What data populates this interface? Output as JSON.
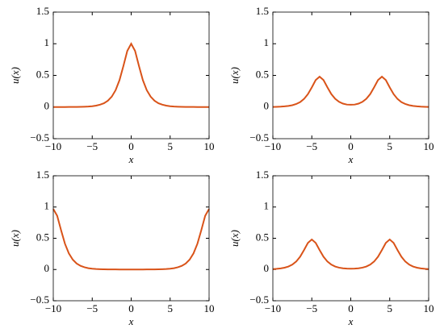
{
  "chart_data": [
    {
      "type": "line",
      "xlabel": "x",
      "ylabel": "u(x)",
      "x": [
        -10,
        -9.5,
        -9,
        -8.5,
        -8,
        -7.5,
        -7,
        -6.5,
        -6,
        -5.5,
        -5,
        -4.5,
        -4,
        -3.5,
        -3,
        -2.5,
        -2,
        -1.5,
        -1,
        -0.5,
        0,
        0.5,
        1,
        1.5,
        2,
        2.5,
        3,
        3.5,
        4,
        4.5,
        5,
        5.5,
        6,
        6.5,
        7,
        7.5,
        8,
        8.5,
        9,
        9.5,
        10
      ],
      "series": [
        {
          "color": "#d95319",
          "values": [
            0,
            0,
            0,
            0,
            0.001,
            0.001,
            0.002,
            0.003,
            0.005,
            0.008,
            0.013,
            0.022,
            0.037,
            0.06,
            0.099,
            0.163,
            0.266,
            0.425,
            0.648,
            0.887,
            1,
            0.887,
            0.648,
            0.425,
            0.266,
            0.163,
            0.099,
            0.06,
            0.037,
            0.022,
            0.013,
            0.008,
            0.005,
            0.003,
            0.002,
            0.001,
            0.001,
            0,
            0,
            0,
            0
          ]
        }
      ],
      "xlim": [
        -10,
        10
      ],
      "ylim": [
        -0.5,
        1.5
      ],
      "xticks": [
        {
          "value": -10,
          "label": "−10"
        },
        {
          "value": -5,
          "label": "−5"
        },
        0,
        5,
        10
      ],
      "yticks": [
        {
          "value": -0.5,
          "label": "−0.5"
        },
        0,
        0.5,
        1,
        1.5
      ]
    },
    {
      "type": "line",
      "xlabel": "x",
      "ylabel": "u(x)",
      "x": [
        -10,
        -9.5,
        -9,
        -8.5,
        -8,
        -7.5,
        -7,
        -6.5,
        -6,
        -5.5,
        -5,
        -4.5,
        -4,
        -3.5,
        -3,
        -2.5,
        -2,
        -1.5,
        -1,
        -0.5,
        0,
        0.5,
        1,
        1.5,
        2,
        2.5,
        3,
        3.5,
        4,
        4.5,
        5,
        5.5,
        6,
        6.5,
        7,
        7.5,
        8,
        8.5,
        9,
        9.5,
        10
      ],
      "series": [
        {
          "color": "#d95319",
          "values": [
            0.002,
            0.004,
            0.006,
            0.011,
            0.018,
            0.029,
            0.048,
            0.078,
            0.128,
            0.204,
            0.311,
            0.426,
            0.48,
            0.426,
            0.312,
            0.205,
            0.13,
            0.082,
            0.054,
            0.039,
            0.036,
            0.039,
            0.054,
            0.082,
            0.13,
            0.205,
            0.312,
            0.426,
            0.48,
            0.426,
            0.311,
            0.204,
            0.128,
            0.078,
            0.048,
            0.029,
            0.018,
            0.011,
            0.006,
            0.004,
            0.002
          ]
        }
      ],
      "xlim": [
        -10,
        10
      ],
      "ylim": [
        -0.5,
        1.5
      ],
      "xticks": [
        {
          "value": -10,
          "label": "−10"
        },
        {
          "value": -5,
          "label": "−5"
        },
        0,
        5,
        10
      ],
      "yticks": [
        {
          "value": -0.5,
          "label": "−0.5"
        },
        0,
        0.5,
        1,
        1.5
      ]
    },
    {
      "type": "line",
      "xlabel": "x",
      "ylabel": "u(x)",
      "x": [
        -10,
        -9.5,
        -9,
        -8.5,
        -8,
        -7.5,
        -7,
        -6.5,
        -6,
        -5.5,
        -5,
        -4.5,
        -4,
        -3.5,
        -3,
        -2.5,
        -2,
        -1.5,
        -1,
        -0.5,
        0,
        0.5,
        1,
        1.5,
        2,
        2.5,
        3,
        3.5,
        4,
        4.5,
        5,
        5.5,
        6,
        6.5,
        7,
        7.5,
        8,
        8.5,
        9,
        9.5,
        10
      ],
      "series": [
        {
          "color": "#d95319",
          "values": [
            0.97,
            0.86,
            0.629,
            0.412,
            0.258,
            0.158,
            0.096,
            0.058,
            0.036,
            0.021,
            0.013,
            0.008,
            0.005,
            0.003,
            0.002,
            0.001,
            0.001,
            0,
            0,
            0,
            0,
            0,
            0,
            0,
            0.001,
            0.001,
            0.002,
            0.003,
            0.005,
            0.008,
            0.013,
            0.021,
            0.036,
            0.058,
            0.096,
            0.158,
            0.258,
            0.412,
            0.629,
            0.86,
            0.97
          ]
        }
      ],
      "xlim": [
        -10,
        10
      ],
      "ylim": [
        -0.5,
        1.5
      ],
      "xticks": [
        {
          "value": -10,
          "label": "−10"
        },
        {
          "value": -5,
          "label": "−5"
        },
        0,
        5,
        10
      ],
      "yticks": [
        {
          "value": -0.5,
          "label": "−0.5"
        },
        0,
        0.5,
        1,
        1.5
      ]
    },
    {
      "type": "line",
      "xlabel": "x",
      "ylabel": "u(x)",
      "x": [
        -10,
        -9.5,
        -9,
        -8.5,
        -8,
        -7.5,
        -7,
        -6.5,
        -6,
        -5.5,
        -5,
        -4.5,
        -4,
        -3.5,
        -3,
        -2.5,
        -2,
        -1.5,
        -1,
        -0.5,
        0,
        0.5,
        1,
        1.5,
        2,
        2.5,
        3,
        3.5,
        4,
        4.5,
        5,
        5.5,
        6,
        6.5,
        7,
        7.5,
        8,
        8.5,
        9,
        9.5,
        10
      ],
      "series": [
        {
          "color": "#d95319",
          "values": [
            0.006,
            0.011,
            0.018,
            0.029,
            0.048,
            0.078,
            0.128,
            0.204,
            0.311,
            0.426,
            0.48,
            0.426,
            0.311,
            0.204,
            0.128,
            0.079,
            0.048,
            0.03,
            0.02,
            0.014,
            0.013,
            0.014,
            0.02,
            0.03,
            0.048,
            0.079,
            0.128,
            0.204,
            0.311,
            0.426,
            0.48,
            0.426,
            0.311,
            0.204,
            0.128,
            0.078,
            0.048,
            0.029,
            0.018,
            0.011,
            0.006
          ]
        }
      ],
      "xlim": [
        -10,
        10
      ],
      "ylim": [
        -0.5,
        1.5
      ],
      "xticks": [
        {
          "value": -10,
          "label": "−10"
        },
        {
          "value": -5,
          "label": "−5"
        },
        0,
        5,
        10
      ],
      "yticks": [
        {
          "value": -0.5,
          "label": "−0.5"
        },
        0,
        0.5,
        1,
        1.5
      ]
    }
  ]
}
